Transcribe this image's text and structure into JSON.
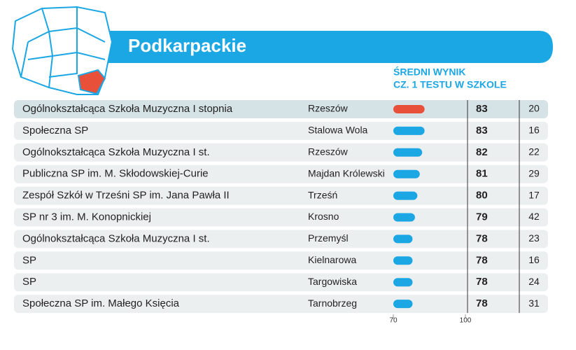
{
  "header": {
    "title": "Podkarpackie"
  },
  "column_header": [
    "ŚREDNI WYNIK",
    "CZ. 1 TESTU W SZKOLE"
  ],
  "scale": {
    "xlim": [
      70,
      100
    ],
    "xticks": [
      70,
      100
    ]
  },
  "rows": [
    {
      "school": "Ogólnokształcąca Szkoła Muzyczna I stopnia",
      "city": "Rzeszów",
      "score": 83,
      "rank": 20,
      "bar_color": "#e8503a"
    },
    {
      "school": "Społeczna SP",
      "city": "Stalowa Wola",
      "score": 83,
      "rank": 16,
      "bar_color": "#1ba6e4"
    },
    {
      "school": "Ogólnokształcąca Szkoła Muzyczna I st.",
      "city": "Rzeszów",
      "score": 82,
      "rank": 22,
      "bar_color": "#1ba6e4"
    },
    {
      "school": "Publiczna SP im. M. Skłodowskiej-Curie",
      "city": "Majdan Królewski",
      "score": 81,
      "rank": 29,
      "bar_color": "#1ba6e4"
    },
    {
      "school": "Zespół Szkół w Trześni SP im. Jana Pawła II",
      "city": "Trześń",
      "score": 80,
      "rank": 17,
      "bar_color": "#1ba6e4"
    },
    {
      "school": "SP nr 3 im. M. Konopnickiej",
      "city": "Krosno",
      "score": 79,
      "rank": 42,
      "bar_color": "#1ba6e4"
    },
    {
      "school": "Ogólnokształcąca Szkoła Muzyczna I st.",
      "city": "Przemyśl",
      "score": 78,
      "rank": 23,
      "bar_color": "#1ba6e4"
    },
    {
      "school": "SP",
      "city": "Kielnarowa",
      "score": 78,
      "rank": 16,
      "bar_color": "#1ba6e4"
    },
    {
      "school": "SP",
      "city": "Targowiska",
      "score": 78,
      "rank": 24,
      "bar_color": "#1ba6e4"
    },
    {
      "school": "Społeczna SP im. Małego Księcia",
      "city": "Tarnobrzeg",
      "score": 78,
      "rank": 31,
      "bar_color": "#1ba6e4"
    }
  ]
}
